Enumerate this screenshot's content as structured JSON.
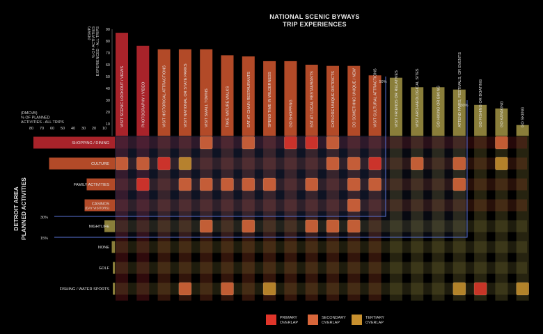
{
  "title_line1": "NATIONAL SCENIC BYWAYS",
  "title_line2": "TRIP EXPERIENCES",
  "side_title_line1": "DETROIT AREA",
  "side_title_line2": "PLANNED ACTIVITIES",
  "top_axis_label": [
    "(NSMP)",
    "% OF ACTIVITIES",
    "EXPERIENCED - ALL TRIPS"
  ],
  "left_axis_label": [
    "(DMCVB)",
    "% OF PLANNED",
    "ACTIVITIES - ALL TRIPS"
  ],
  "threshold_labels": {
    "top_50": "50%",
    "top_30": "30%",
    "left_30": "30%",
    "left_15": "15%"
  },
  "colors": {
    "red": "#a8232a",
    "orange": "#b24a28",
    "olive": "#8a7e3a",
    "primary": "#e0352a",
    "secondary": "#d8663a",
    "tertiary": "#c8902e",
    "guide": "#5a74d8"
  },
  "legend": [
    {
      "key": "primary",
      "line1": "PRIMARY",
      "line2": "OVERLAP"
    },
    {
      "key": "secondary",
      "line1": "SECONDARY",
      "line2": "OVERLAP"
    },
    {
      "key": "tertiary",
      "line1": "TERTIARY",
      "line2": "OVERLAP"
    }
  ],
  "chart_data": {
    "type": "bar",
    "top_bars": {
      "axis_ticks": [
        10,
        20,
        30,
        40,
        50,
        60,
        70,
        80,
        90
      ],
      "ylim": [
        0,
        90
      ],
      "categories": [
        "VISIT SCENIC LOOKOUT / VIEWS",
        "PHOTOGRAPHY / VIDEO",
        "VISIT HISTORICAL ATTRACTIONS",
        "VISIT NATIONAL OR STATE PARKS",
        "VISIT SMALL TOWNS",
        "TAKE NATURE WALKS",
        "EAT AT CHAIN RESTAURANTS",
        "SPEND TIME IN WILDERNESS",
        "GO SHOPPING",
        "EAT AT LOCAL RESTAURANTS",
        "EXPLORE UNIQUE DISTRICTS",
        "DO SOMETHING UNIQUE / NEW",
        "VISIT CULTURAL ATTRACTIONS",
        "VISIT FRIENDS OR RELATIVES",
        "VISIT ARCHAEOLOGICAL SITES",
        "GO HIKING OR BIKING",
        "ATTEND FAIRS, FESTIVALS, OR EVENTS",
        "GO FISHING OR BOATING",
        "GO KAYAKING",
        "GO SKIING"
      ],
      "values": [
        87,
        76,
        73,
        73,
        73,
        68,
        67,
        63,
        63,
        60,
        59,
        59,
        51,
        49,
        41,
        41,
        39,
        26,
        23,
        9
      ],
      "thresholds": [
        50,
        30
      ]
    },
    "left_bars": {
      "axis_ticks": [
        80,
        70,
        60,
        50,
        40,
        30,
        20,
        10
      ],
      "xlim": [
        0,
        80
      ],
      "categories": [
        "SHOPPING / DINING",
        "CULTURE",
        "FAMILY ACTIVITIES",
        "CASINOS",
        "NIGHTLIFE",
        "NONE",
        "GOLF",
        "FISHING / WATER SPORTS"
      ],
      "category_sublabels": [
        "",
        "",
        "",
        "(DAY VISITORS)",
        "",
        "",
        "",
        ""
      ],
      "values": [
        78,
        63,
        27,
        29,
        10,
        3,
        2,
        2
      ],
      "thresholds": [
        30,
        15
      ]
    },
    "overlaps": [
      {
        "row": 0,
        "col": 5,
        "level": "secondary"
      },
      {
        "row": 0,
        "col": 7,
        "level": "secondary"
      },
      {
        "row": 0,
        "col": 9,
        "level": "primary"
      },
      {
        "row": 0,
        "col": 10,
        "level": "primary"
      },
      {
        "row": 0,
        "col": 11,
        "level": "secondary"
      },
      {
        "row": 0,
        "col": 19,
        "level": "secondary"
      },
      {
        "row": 1,
        "col": 1,
        "level": "secondary"
      },
      {
        "row": 1,
        "col": 2,
        "level": "secondary"
      },
      {
        "row": 1,
        "col": 3,
        "level": "primary"
      },
      {
        "row": 1,
        "col": 4,
        "level": "tertiary"
      },
      {
        "row": 1,
        "col": 11,
        "level": "secondary"
      },
      {
        "row": 1,
        "col": 12,
        "level": "secondary"
      },
      {
        "row": 1,
        "col": 13,
        "level": "primary"
      },
      {
        "row": 1,
        "col": 15,
        "level": "secondary"
      },
      {
        "row": 1,
        "col": 17,
        "level": "secondary"
      },
      {
        "row": 1,
        "col": 19,
        "level": "tertiary"
      },
      {
        "row": 2,
        "col": 2,
        "level": "primary"
      },
      {
        "row": 2,
        "col": 4,
        "level": "secondary"
      },
      {
        "row": 2,
        "col": 5,
        "level": "secondary"
      },
      {
        "row": 2,
        "col": 6,
        "level": "secondary"
      },
      {
        "row": 2,
        "col": 7,
        "level": "secondary"
      },
      {
        "row": 2,
        "col": 8,
        "level": "secondary"
      },
      {
        "row": 2,
        "col": 10,
        "level": "secondary"
      },
      {
        "row": 2,
        "col": 12,
        "level": "secondary"
      },
      {
        "row": 2,
        "col": 13,
        "level": "secondary"
      },
      {
        "row": 2,
        "col": 17,
        "level": "secondary"
      },
      {
        "row": 3,
        "col": 12,
        "level": "secondary"
      },
      {
        "row": 4,
        "col": 5,
        "level": "secondary"
      },
      {
        "row": 4,
        "col": 7,
        "level": "secondary"
      },
      {
        "row": 4,
        "col": 10,
        "level": "secondary"
      },
      {
        "row": 4,
        "col": 11,
        "level": "secondary"
      },
      {
        "row": 4,
        "col": 12,
        "level": "secondary"
      },
      {
        "row": 7,
        "col": 4,
        "level": "secondary"
      },
      {
        "row": 7,
        "col": 6,
        "level": "secondary"
      },
      {
        "row": 7,
        "col": 8,
        "level": "tertiary"
      },
      {
        "row": 7,
        "col": 17,
        "level": "tertiary"
      },
      {
        "row": 7,
        "col": 18,
        "level": "primary"
      },
      {
        "row": 7,
        "col": 20,
        "level": "tertiary"
      }
    ]
  }
}
